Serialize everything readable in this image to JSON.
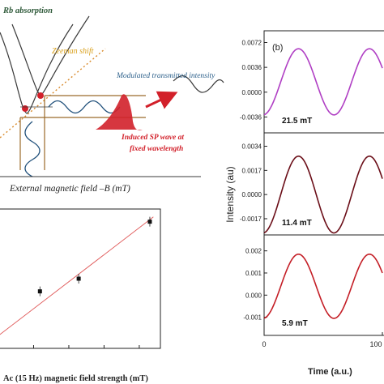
{
  "colors": {
    "panel_b_top": "#b03fc4",
    "panel_b_mid": "#6b0e18",
    "panel_b_bot": "#c41e26",
    "fit_line": "#e05a5a",
    "absorption_curve": "#3a3a3a",
    "dotted_line": "#d98a2b",
    "box_line": "#9b6a2a",
    "modulated_wave": "#1f4f7a",
    "arrow": "#d2202a",
    "sp_wave": "#d2202a",
    "zeeman_text": "#d9a01c",
    "blue_text": "#2b5f8a",
    "red_text": "#d2202a",
    "green_text": "#2f5a3a"
  },
  "diagram": {
    "rb_absorption": "Rb absorption",
    "zeeman_shift": "Zeeman shift",
    "modulated_intensity": "Modulated transmitted intensity",
    "induced_sp_line1": "Induced SP wave at",
    "induced_sp_line2": "fixed wavelength",
    "x_axis_label": "External magnetic field –B (mT)"
  },
  "chart_data": [
    {
      "type": "scatter",
      "xlabel": "Ac (15 Hz) magnetic field strength (mT)",
      "x": [
        5.9,
        11.4,
        21.5
      ],
      "y": [
        0.56,
        0.64,
        1.0
      ],
      "fit": {
        "x": [
          0,
          22
        ],
        "y": [
          0.28,
          1.03
        ]
      }
    },
    {
      "type": "line",
      "panel_label": "(b)",
      "ylabel": "Intensity  (au)",
      "xlabel": "Time (a.u.)",
      "x_ticks": [
        "0",
        "100"
      ],
      "subplots": [
        {
          "label": "21.5 mT",
          "yticks": [
            "0.0072",
            "0.0036",
            "0.0000",
            "-0.0036"
          ],
          "ytick_values": [
            0.0072,
            0.0036,
            0.0,
            -0.0036
          ],
          "ylim": [
            -0.0052,
            0.0082
          ],
          "amplitude": 0.0048,
          "offset": 0.0015,
          "period": 60,
          "phase": 0.08
        },
        {
          "label": "11.4 mT",
          "yticks": [
            "0.0034",
            "0.0017",
            "0.0000",
            "-0.0017"
          ],
          "ytick_values": [
            0.0034,
            0.0017,
            0.0,
            -0.0017
          ],
          "ylim": [
            -0.0025,
            0.004
          ],
          "amplitude": 0.0027,
          "offset": 0.0,
          "period": 60,
          "phase": 0.08
        },
        {
          "label": "5.9 mT",
          "yticks": [
            "0.002",
            "0.001",
            "0.000",
            "-0.001"
          ],
          "ytick_values": [
            0.002,
            0.001,
            0.0,
            -0.001
          ],
          "ylim": [
            -0.0016,
            0.0025
          ],
          "amplitude": 0.00145,
          "offset": 0.0004,
          "period": 60,
          "phase": 0.08
        }
      ]
    }
  ]
}
